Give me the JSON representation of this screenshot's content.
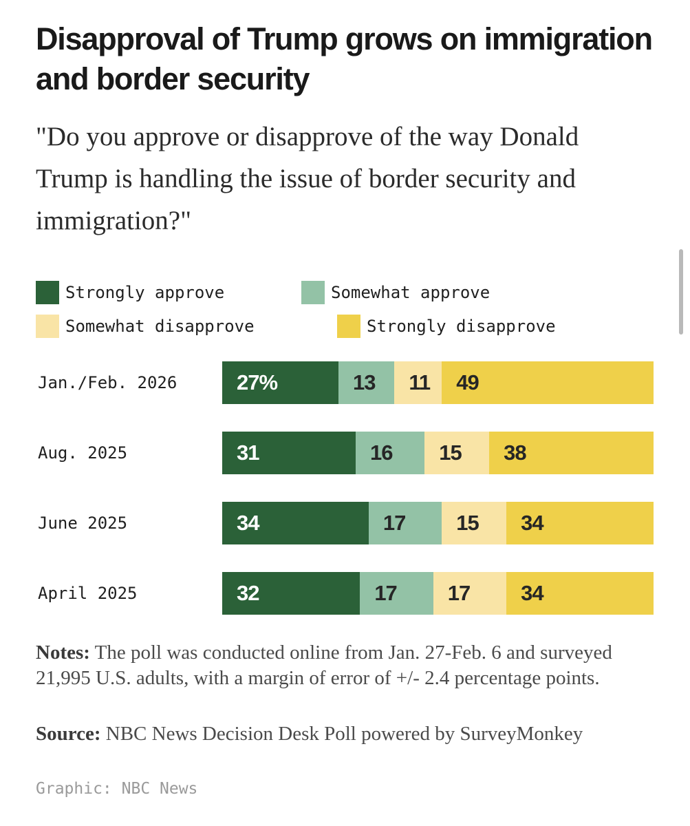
{
  "header": {
    "title": "Disapproval of Trump grows on immigration and border security",
    "subtitle": "\"Do you approve or disapprove of the way Donald Trump is handling the issue of border security and immigration?\""
  },
  "colors": {
    "strongly_approve": "#2b6138",
    "somewhat_approve": "#93c2a6",
    "somewhat_disapprove": "#f9e4a6",
    "strongly_disapprove": "#efd04a",
    "label_light": "#ffffff",
    "label_dark": "#262626"
  },
  "chart_data": {
    "type": "bar",
    "orientation": "horizontal",
    "stacked": true,
    "unit_note": "first value in the first row is shown with a % sign",
    "categories": [
      "Jan./Feb. 2026",
      "Aug. 2025",
      "June 2025",
      "April 2025"
    ],
    "series": [
      {
        "name": "Strongly approve",
        "color_key": "strongly_approve",
        "values": [
          27,
          31,
          34,
          32
        ]
      },
      {
        "name": "Somewhat approve",
        "color_key": "somewhat_approve",
        "values": [
          13,
          16,
          17,
          17
        ]
      },
      {
        "name": "Somewhat disapprove",
        "color_key": "somewhat_disapprove",
        "values": [
          11,
          15,
          15,
          17
        ]
      },
      {
        "name": "Strongly disapprove",
        "color_key": "strongly_disapprove",
        "values": [
          49,
          38,
          34,
          34
        ]
      }
    ],
    "value_labels": [
      [
        "27%",
        "13",
        "11",
        "49"
      ],
      [
        "31",
        "16",
        "15",
        "38"
      ],
      [
        "34",
        "17",
        "15",
        "34"
      ],
      [
        "32",
        "17",
        "17",
        "34"
      ]
    ],
    "legend_position": "top-left",
    "xlim": [
      0,
      100
    ]
  },
  "notes": {
    "label": "Notes:",
    "text": " The poll was conducted online from Jan. 27-Feb. 6 and surveyed 21,995 U.S. adults, with a margin of error of +/- 2.4 percentage points."
  },
  "source": {
    "label": "Source:",
    "text": " NBC News Decision Desk Poll powered by SurveyMonkey"
  },
  "credit": "Graphic: NBC News"
}
